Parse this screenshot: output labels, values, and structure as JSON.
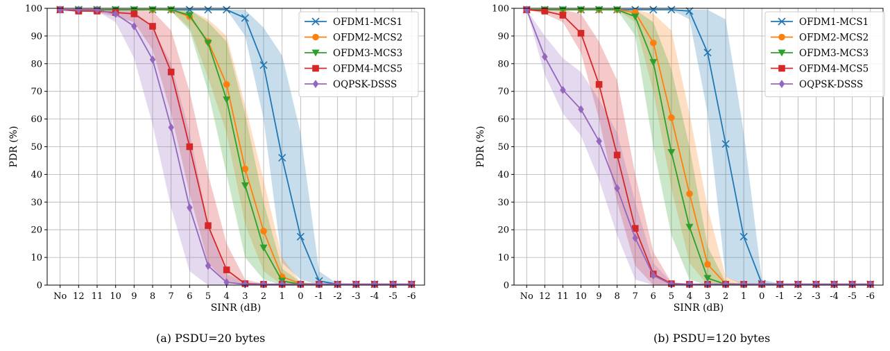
{
  "colors": {
    "OFDM1-MCS1": "#1f77b4",
    "OFDM2-MCS2": "#ff7f0e",
    "OFDM3-MCS3": "#2ca02c",
    "OFDM4-MCS5": "#d62728",
    "OQPSK-DSSS": "#9467bd"
  },
  "markers": {
    "OFDM1-MCS1": "x",
    "OFDM2-MCS2": "circle",
    "OFDM3-MCS3": "triangle-down",
    "OFDM4-MCS5": "square",
    "OQPSK-DSSS": "diamond"
  },
  "chart_data": [
    {
      "type": "line",
      "caption": "(a) PSDU=20 bytes",
      "xlabel": "SINR (dB)",
      "ylabel": "PDR (%)",
      "ylim": [
        0,
        100
      ],
      "yticks": [
        0,
        10,
        20,
        30,
        40,
        50,
        60,
        70,
        80,
        90,
        100
      ],
      "categories": [
        "No",
        "12",
        "11",
        "10",
        "9",
        "8",
        "7",
        "6",
        "5",
        "4",
        "3",
        "2",
        "1",
        "0",
        "-1",
        "-2",
        "-3",
        "-4",
        "-5",
        "-6"
      ],
      "grid": true,
      "legend": "top-right",
      "series": [
        {
          "name": "OFDM1-MCS1",
          "values": [
            99.5,
            99.5,
            99.5,
            99.5,
            99.5,
            99.5,
            99.5,
            99.5,
            99.5,
            99.5,
            96.5,
            79.5,
            46,
            17.5,
            1.5,
            0.3,
            0.3,
            0.3,
            0.3,
            0.3
          ],
          "lower": [
            99.5,
            99.5,
            99.5,
            99.5,
            99.5,
            99.5,
            99.5,
            99.5,
            99.5,
            99.5,
            90,
            60,
            8,
            2,
            0,
            0,
            0,
            0,
            0,
            0
          ],
          "upper": [
            99.5,
            99.5,
            99.5,
            99.5,
            99.5,
            99.5,
            99.5,
            99.5,
            99.5,
            99.5,
            99.5,
            93,
            83,
            55,
            5,
            0.5,
            0.5,
            0.5,
            0.5,
            0.5
          ]
        },
        {
          "name": "OFDM2-MCS2",
          "values": [
            99.5,
            99.5,
            99.5,
            99.5,
            99.5,
            99.5,
            99.5,
            97,
            88,
            72.5,
            42,
            19.5,
            3,
            0.5,
            0.3,
            0.3,
            0.3,
            0.3,
            0.3,
            0.3
          ],
          "lower": [
            99.5,
            99.5,
            99.5,
            99.5,
            99.5,
            99.5,
            99,
            93,
            75,
            55,
            22,
            5,
            0,
            0,
            0,
            0,
            0,
            0,
            0,
            0
          ],
          "upper": [
            99.5,
            99.5,
            99.5,
            99.5,
            99.5,
            99.5,
            99.5,
            99.5,
            96,
            90,
            65,
            38,
            10,
            1,
            0.5,
            0.5,
            0.5,
            0.5,
            0.5,
            0.5
          ]
        },
        {
          "name": "OFDM3-MCS3",
          "values": [
            99.5,
            99.5,
            99.5,
            99.5,
            99.5,
            99.5,
            99.5,
            97.5,
            87.5,
            67,
            36,
            13.5,
            1.5,
            0.3,
            0.3,
            0.3,
            0.3,
            0.3,
            0.3,
            0.3
          ],
          "lower": [
            99.5,
            99.5,
            99.5,
            99.5,
            99.5,
            99.5,
            99,
            92,
            70,
            40,
            10,
            2,
            0,
            0,
            0,
            0,
            0,
            0,
            0,
            0
          ],
          "upper": [
            99.5,
            99.5,
            99.5,
            99.5,
            99.5,
            99.5,
            99.5,
            99.5,
            95,
            88,
            62,
            30,
            6,
            1,
            0.5,
            0.5,
            0.5,
            0.5,
            0.5,
            0.5
          ]
        },
        {
          "name": "OFDM4-MCS5",
          "values": [
            99.5,
            99,
            99,
            98.5,
            98,
            93.5,
            77,
            50,
            21.5,
            5.5,
            0.5,
            0.3,
            0.3,
            0.3,
            0.3,
            0.3,
            0.3,
            0.3,
            0.3,
            0.3
          ],
          "lower": [
            99.5,
            99,
            98.5,
            97,
            95,
            85,
            62,
            33,
            8,
            1,
            0,
            0,
            0,
            0,
            0,
            0,
            0,
            0,
            0,
            0
          ],
          "upper": [
            99.5,
            99.5,
            99.5,
            99.5,
            99.5,
            99,
            92,
            70,
            40,
            15,
            2,
            0.5,
            0.5,
            0.5,
            0.5,
            0.5,
            0.5,
            0.5,
            0.5,
            0.5
          ]
        },
        {
          "name": "OQPSK-DSSS",
          "values": [
            99.5,
            99.5,
            99.5,
            98,
            93.5,
            81.5,
            57,
            28,
            7,
            1,
            0.3,
            0.3,
            0.3,
            0.3,
            0.3,
            0.3,
            0.3,
            0.3,
            0.3,
            0.3
          ],
          "lower": [
            99.5,
            99.5,
            99,
            95,
            82,
            58,
            28,
            5,
            0,
            0,
            0,
            0,
            0,
            0,
            0,
            0,
            0,
            0,
            0,
            0
          ],
          "upper": [
            99.5,
            99.5,
            99.5,
            99.5,
            99,
            93,
            80,
            55,
            22,
            4,
            1,
            0.5,
            0.5,
            0.5,
            0.5,
            0.5,
            0.5,
            0.5,
            0.5,
            0.5
          ]
        }
      ]
    },
    {
      "type": "line",
      "caption": "(b) PSDU=120 bytes",
      "xlabel": "SINR (dB)",
      "ylabel": "PDR (%)",
      "ylim": [
        0,
        100
      ],
      "yticks": [
        0,
        10,
        20,
        30,
        40,
        50,
        60,
        70,
        80,
        90,
        100
      ],
      "categories": [
        "No",
        "12",
        "11",
        "10",
        "9",
        "8",
        "7",
        "6",
        "5",
        "4",
        "3",
        "2",
        "1",
        "0",
        "-1",
        "-2",
        "-3",
        "-4",
        "-5",
        "-6"
      ],
      "grid": true,
      "legend": "top-right",
      "series": [
        {
          "name": "OFDM1-MCS1",
          "values": [
            99.5,
            99.5,
            99.5,
            99.5,
            99.5,
            99.5,
            99.5,
            99.5,
            99.5,
            99,
            84,
            51,
            17.5,
            0.5,
            0.3,
            0.3,
            0.3,
            0.3,
            0.3,
            0.3
          ],
          "lower": [
            99.5,
            99.5,
            99.5,
            99.5,
            99.5,
            99.5,
            99.5,
            99.5,
            99.5,
            96,
            62,
            3,
            0,
            0,
            0,
            0,
            0,
            0,
            0,
            0
          ],
          "upper": [
            99.5,
            99.5,
            99.5,
            99.5,
            99.5,
            99.5,
            99.5,
            99.5,
            99.5,
            99.5,
            99.5,
            96,
            55,
            2,
            0.5,
            0.5,
            0.5,
            0.5,
            0.5,
            0.5
          ]
        },
        {
          "name": "OFDM2-MCS2",
          "values": [
            99.5,
            99.5,
            99.5,
            99.5,
            99.5,
            99.5,
            98.5,
            87.5,
            60.5,
            33,
            7.5,
            0.5,
            0.3,
            0.3,
            0.3,
            0.3,
            0.3,
            0.3,
            0.3,
            0.3
          ],
          "lower": [
            99.5,
            99.5,
            99.5,
            99.5,
            99.5,
            99.5,
            95,
            70,
            35,
            8,
            0,
            0,
            0,
            0,
            0,
            0,
            0,
            0,
            0,
            0
          ],
          "upper": [
            99.5,
            99.5,
            99.5,
            99.5,
            99.5,
            99.5,
            99.5,
            98,
            92,
            62,
            28,
            3,
            0.5,
            0.5,
            0.5,
            0.5,
            0.5,
            0.5,
            0.5,
            0.5
          ]
        },
        {
          "name": "OFDM3-MCS3",
          "values": [
            99.5,
            99.5,
            99.5,
            99.5,
            99.5,
            99.5,
            97,
            80.5,
            48,
            21,
            2.5,
            0.3,
            0.3,
            0.3,
            0.3,
            0.3,
            0.3,
            0.3,
            0.3,
            0.3
          ],
          "lower": [
            99.5,
            99.5,
            99.5,
            99.5,
            99.5,
            99.5,
            90,
            50,
            18,
            2,
            0,
            0,
            0,
            0,
            0,
            0,
            0,
            0,
            0,
            0
          ],
          "upper": [
            99.5,
            99.5,
            99.5,
            99.5,
            99.5,
            99.5,
            99.5,
            95,
            78,
            50,
            14,
            1,
            0.5,
            0.5,
            0.5,
            0.5,
            0.5,
            0.5,
            0.5,
            0.5
          ]
        },
        {
          "name": "OFDM4-MCS5",
          "values": [
            99.5,
            99,
            97.5,
            91,
            72.5,
            47,
            20.5,
            4,
            0.5,
            0.3,
            0.3,
            0.3,
            0.3,
            0.3,
            0.3,
            0.3,
            0.3,
            0.3,
            0.3,
            0.3
          ],
          "lower": [
            99.5,
            98,
            95,
            84,
            60,
            30,
            7,
            0,
            0,
            0,
            0,
            0,
            0,
            0,
            0,
            0,
            0,
            0,
            0,
            0
          ],
          "upper": [
            99.5,
            99.5,
            99.5,
            98,
            88,
            74,
            40,
            12,
            1,
            0.5,
            0.5,
            0.5,
            0.5,
            0.5,
            0.5,
            0.5,
            0.5,
            0.5,
            0.5,
            0.5
          ]
        },
        {
          "name": "OQPSK-DSSS",
          "values": [
            99.5,
            82.5,
            70.5,
            63.5,
            52,
            35,
            17,
            3.5,
            0.3,
            0.3,
            0.3,
            0.3,
            0.3,
            0.3,
            0.3,
            0.3,
            0.3,
            0.3,
            0.3,
            0.3
          ],
          "lower": [
            99.5,
            76,
            62,
            54,
            38,
            18,
            2,
            0,
            0,
            0,
            0,
            0,
            0,
            0,
            0,
            0,
            0,
            0,
            0,
            0
          ],
          "upper": [
            99.5,
            90,
            82,
            77,
            67,
            55,
            30,
            8,
            1,
            0.5,
            0.5,
            0.5,
            0.5,
            0.5,
            0.5,
            0.5,
            0.5,
            0.5,
            0.5,
            0.5
          ]
        }
      ]
    }
  ]
}
